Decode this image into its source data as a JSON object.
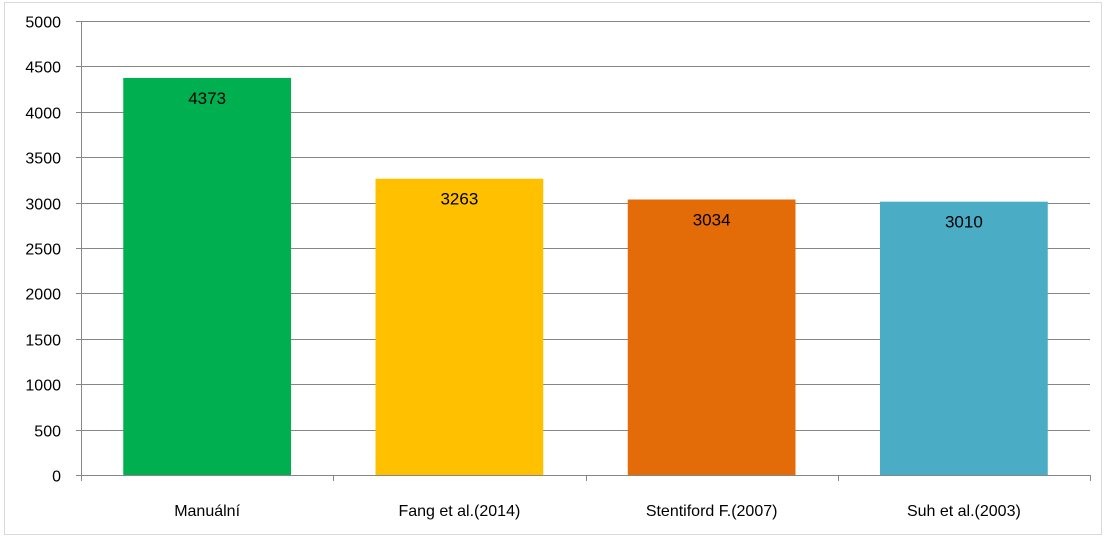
{
  "chart_data": {
    "type": "bar",
    "categories": [
      "Manuální",
      "Fang et al.(2014)",
      "Stentiford F.(2007)",
      "Suh et al.(2003)"
    ],
    "values": [
      4373,
      3263,
      3034,
      3010
    ],
    "data_labels": [
      "4373",
      "3263",
      "3034",
      "3010"
    ],
    "colors": [
      "#00b050",
      "#ffc000",
      "#e36c09",
      "#4bacc6"
    ],
    "title": "",
    "xlabel": "",
    "ylabel": "",
    "ylim": [
      0,
      5000
    ],
    "yticks": [
      0,
      500,
      1000,
      1500,
      2000,
      2500,
      3000,
      3500,
      4000,
      4500,
      5000
    ],
    "ytick_labels": [
      "0",
      "500",
      "1000",
      "1500",
      "2000",
      "2500",
      "3000",
      "3500",
      "4000",
      "4500",
      "5000"
    ],
    "grid": true,
    "legend": "none"
  }
}
